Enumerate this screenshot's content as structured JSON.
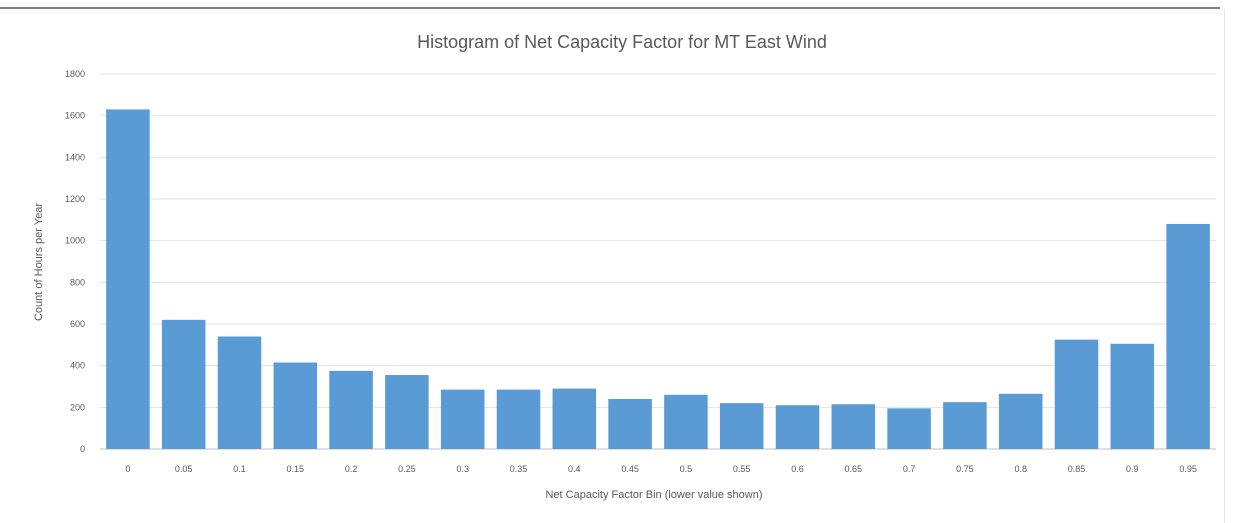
{
  "chart_data": {
    "type": "bar",
    "title": "Histogram of Net Capacity Factor for MT East Wind",
    "xlabel": "Net Capacity Factor Bin (lower value shown)",
    "ylabel": "Count of Hours per Year",
    "ylim": [
      0,
      1800
    ],
    "yticks": [
      "0",
      "200",
      "400",
      "600",
      "800",
      "1000",
      "1200",
      "1400",
      "1600",
      "1800"
    ],
    "grid": true,
    "legend": "none",
    "bar_color": "#5b9bd5",
    "categories": [
      "0",
      "0.05",
      "0.1",
      "0.15",
      "0.2",
      "0.25",
      "0.3",
      "0.35",
      "0.4",
      "0.45",
      "0.5",
      "0.55",
      "0.6",
      "0.65",
      "0.7",
      "0.75",
      "0.8",
      "0.85",
      "0.9",
      "0.95"
    ],
    "values": [
      1630,
      620,
      540,
      415,
      375,
      355,
      285,
      285,
      290,
      240,
      260,
      220,
      210,
      215,
      195,
      225,
      265,
      525,
      505,
      1080
    ]
  }
}
